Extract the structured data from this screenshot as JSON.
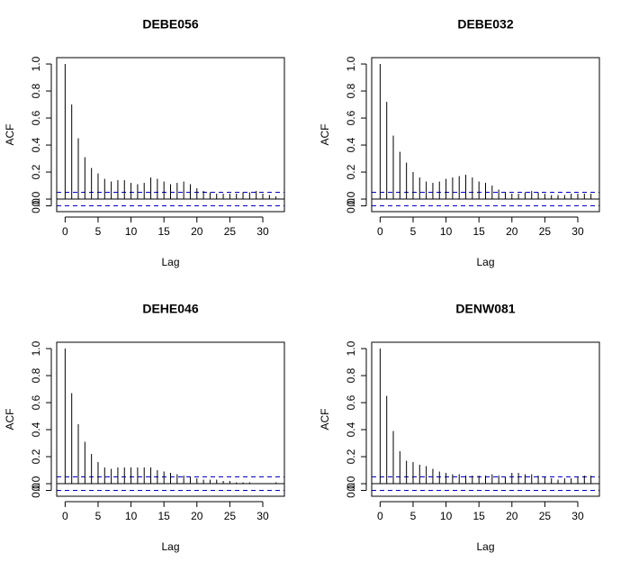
{
  "chart_data": [
    {
      "type": "acf",
      "title": "DEBE056",
      "x_label": "Lag",
      "y_label": "ACF",
      "x": [
        0,
        1,
        2,
        3,
        4,
        5,
        6,
        7,
        8,
        9,
        10,
        11,
        12,
        13,
        14,
        15,
        16,
        17,
        18,
        19,
        20,
        21,
        22,
        23,
        24,
        25,
        26,
        27,
        28,
        29,
        30,
        31,
        32
      ],
      "values": [
        1.0,
        0.7,
        0.45,
        0.31,
        0.23,
        0.19,
        0.15,
        0.13,
        0.14,
        0.14,
        0.12,
        0.11,
        0.12,
        0.16,
        0.15,
        0.13,
        0.11,
        0.12,
        0.13,
        0.11,
        0.08,
        0.06,
        0.05,
        0.04,
        0.04,
        0.04,
        0.04,
        0.05,
        0.05,
        0.06,
        0.04,
        0.03,
        0.02
      ],
      "confidence_band": 0.05,
      "color": "#000000",
      "band_color": "#0000cc",
      "xlim": [
        -1.28,
        33.28
      ],
      "ylim": [
        -0.093,
        1.047
      ],
      "xticks": [
        0,
        5,
        10,
        15,
        20,
        25,
        30
      ],
      "yticks": [
        {
          "value": -0.05,
          "label": "0.0"
        },
        {
          "value": 0,
          "label": "0.0"
        },
        {
          "value": 0.2,
          "label": "0.2"
        },
        {
          "value": 0.4,
          "label": "0.4"
        },
        {
          "value": 0.6,
          "label": "0.6"
        },
        {
          "value": 0.8,
          "label": "0.8"
        },
        {
          "value": 1,
          "label": "1.0"
        }
      ]
    },
    {
      "type": "acf",
      "title": "DEBE032",
      "x_label": "Lag",
      "y_label": "ACF",
      "x": [
        0,
        1,
        2,
        3,
        4,
        5,
        6,
        7,
        8,
        9,
        10,
        11,
        12,
        13,
        14,
        15,
        16,
        17,
        18,
        19,
        20,
        21,
        22,
        23,
        24,
        25,
        26,
        27,
        28,
        29,
        30,
        31,
        32
      ],
      "values": [
        1.0,
        0.72,
        0.47,
        0.35,
        0.27,
        0.2,
        0.16,
        0.13,
        0.12,
        0.13,
        0.15,
        0.16,
        0.17,
        0.18,
        0.16,
        0.13,
        0.12,
        0.1,
        0.07,
        0.05,
        0.04,
        0.04,
        0.05,
        0.06,
        0.05,
        0.04,
        0.03,
        0.03,
        0.03,
        0.04,
        0.04,
        0.04,
        0.04
      ],
      "confidence_band": 0.05,
      "color": "#000000",
      "band_color": "#0000cc",
      "xlim": [
        -1.28,
        33.28
      ],
      "ylim": [
        -0.093,
        1.047
      ],
      "xticks": [
        0,
        5,
        10,
        15,
        20,
        25,
        30
      ],
      "yticks": [
        {
          "value": -0.05,
          "label": "0.0"
        },
        {
          "value": 0,
          "label": "0.0"
        },
        {
          "value": 0.2,
          "label": "0.2"
        },
        {
          "value": 0.4,
          "label": "0.4"
        },
        {
          "value": 0.6,
          "label": "0.6"
        },
        {
          "value": 0.8,
          "label": "0.8"
        },
        {
          "value": 1,
          "label": "1.0"
        }
      ]
    },
    {
      "type": "acf",
      "title": "DEHE046",
      "x_label": "Lag",
      "y_label": "ACF",
      "x": [
        0,
        1,
        2,
        3,
        4,
        5,
        6,
        7,
        8,
        9,
        10,
        11,
        12,
        13,
        14,
        15,
        16,
        17,
        18,
        19,
        20,
        21,
        22,
        23,
        24,
        25,
        26,
        27,
        28,
        29,
        30,
        31,
        32
      ],
      "values": [
        1.0,
        0.67,
        0.44,
        0.31,
        0.22,
        0.16,
        0.12,
        0.11,
        0.12,
        0.12,
        0.12,
        0.12,
        0.12,
        0.12,
        0.1,
        0.09,
        0.08,
        0.07,
        0.06,
        0.05,
        0.04,
        0.03,
        0.03,
        0.03,
        0.02,
        0.02,
        0.01,
        0.01,
        0.01,
        0.0,
        0.0,
        0.0,
        0.01
      ],
      "confidence_band": 0.05,
      "color": "#000000",
      "band_color": "#0000cc",
      "xlim": [
        -1.28,
        33.28
      ],
      "ylim": [
        -0.093,
        1.047
      ],
      "xticks": [
        0,
        5,
        10,
        15,
        20,
        25,
        30
      ],
      "yticks": [
        {
          "value": -0.05,
          "label": "0.0"
        },
        {
          "value": 0,
          "label": "0.0"
        },
        {
          "value": 0.2,
          "label": "0.2"
        },
        {
          "value": 0.4,
          "label": "0.4"
        },
        {
          "value": 0.6,
          "label": "0.6"
        },
        {
          "value": 0.8,
          "label": "0.8"
        },
        {
          "value": 1,
          "label": "1.0"
        }
      ]
    },
    {
      "type": "acf",
      "title": "DENW081",
      "x_label": "Lag",
      "y_label": "ACF",
      "x": [
        0,
        1,
        2,
        3,
        4,
        5,
        6,
        7,
        8,
        9,
        10,
        11,
        12,
        13,
        14,
        15,
        16,
        17,
        18,
        19,
        20,
        21,
        22,
        23,
        24,
        25,
        26,
        27,
        28,
        29,
        30,
        31,
        32
      ],
      "values": [
        1.0,
        0.65,
        0.39,
        0.24,
        0.17,
        0.16,
        0.14,
        0.13,
        0.11,
        0.09,
        0.08,
        0.07,
        0.07,
        0.06,
        0.06,
        0.06,
        0.06,
        0.07,
        0.06,
        0.05,
        0.08,
        0.08,
        0.07,
        0.07,
        0.06,
        0.05,
        0.04,
        0.03,
        0.04,
        0.04,
        0.05,
        0.06,
        0.06
      ],
      "confidence_band": 0.05,
      "color": "#000000",
      "band_color": "#0000cc",
      "xlim": [
        -1.28,
        33.28
      ],
      "ylim": [
        -0.093,
        1.047
      ],
      "xticks": [
        0,
        5,
        10,
        15,
        20,
        25,
        30
      ],
      "yticks": [
        {
          "value": -0.05,
          "label": "0.0"
        },
        {
          "value": 0,
          "label": "0.0"
        },
        {
          "value": 0.2,
          "label": "0.2"
        },
        {
          "value": 0.4,
          "label": "0.4"
        },
        {
          "value": 0.6,
          "label": "0.6"
        },
        {
          "value": 0.8,
          "label": "0.8"
        },
        {
          "value": 1,
          "label": "1.0"
        }
      ]
    }
  ]
}
